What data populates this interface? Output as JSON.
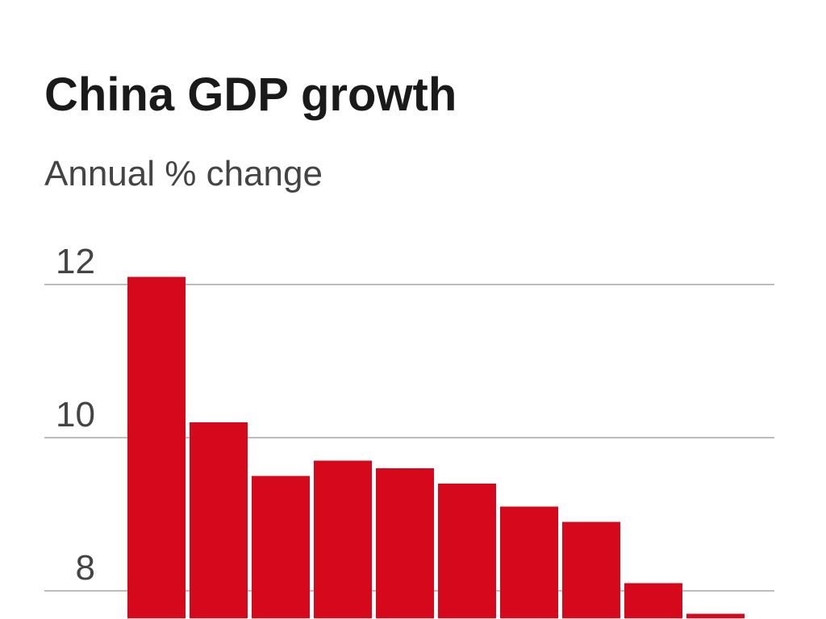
{
  "chart_data": {
    "type": "bar",
    "title": "China GDP growth",
    "subtitle": "Annual % change",
    "categories": [
      null,
      null,
      null,
      null,
      null,
      null,
      null,
      null,
      null,
      null
    ],
    "values": [
      12.1,
      10.2,
      9.5,
      9.7,
      9.6,
      9.4,
      9.1,
      8.9,
      8.1,
      7.7
    ],
    "color": "#d6091c",
    "ylim": [
      7.64,
      12.1
    ],
    "yticks": [
      8,
      10,
      12
    ],
    "grid": true
  }
}
